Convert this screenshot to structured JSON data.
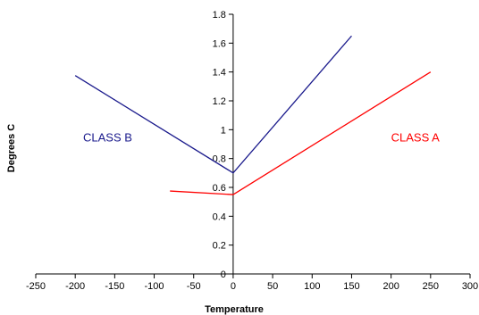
{
  "chart_data": {
    "type": "line",
    "xlabel": "Temperature",
    "ylabel": "Degrees C",
    "xlim": [
      -250,
      300
    ],
    "ylim": [
      0,
      1.8
    ],
    "xticks": [
      -250,
      -200,
      -150,
      -100,
      -50,
      0,
      50,
      100,
      150,
      200,
      250,
      300
    ],
    "yticks": [
      0,
      0.2,
      0.4,
      0.6,
      0.8,
      1,
      1.2,
      1.4,
      1.6,
      1.8
    ],
    "grid": false,
    "legend": "none",
    "series": [
      {
        "name": "CLASS A",
        "color": "#ff0000",
        "x": [
          -80,
          0,
          250
        ],
        "y": [
          0.575,
          0.55,
          1.4
        ]
      },
      {
        "name": "CLASS B",
        "color": "#1a1a8c",
        "x": [
          -200,
          0,
          150
        ],
        "y": [
          1.375,
          0.7,
          1.65
        ]
      }
    ],
    "annotations": [
      {
        "text": "CLASS B",
        "x": -190,
        "y": 0.95,
        "color": "#1a1a8c"
      },
      {
        "text": "CLASS A",
        "x": 200,
        "y": 0.95,
        "color": "#ff0000"
      }
    ]
  }
}
